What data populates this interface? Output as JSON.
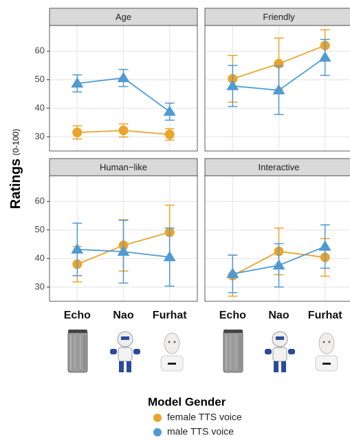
{
  "ylabel": "Ratings",
  "ylabel_unit": "(0-100)",
  "legend_title": "Model Gender",
  "chart_data": [
    {
      "type": "line",
      "title": "Age",
      "categories": [
        "Echo",
        "Nao",
        "Furhat"
      ],
      "ylim": [
        25,
        69
      ],
      "yticks": [
        30,
        40,
        50,
        60
      ],
      "grid": true,
      "series": [
        {
          "name": "female TTS voice",
          "color": "#E9A42B",
          "marker": "circle",
          "values": [
            31.5,
            32.2,
            30.8
          ],
          "errors": [
            2.3,
            2.3,
            2.0
          ]
        },
        {
          "name": "male TTS voice",
          "color": "#4F9BD1",
          "marker": "triangle",
          "values": [
            48.7,
            50.6,
            38.8
          ],
          "errors": [
            3.0,
            3.0,
            3.0
          ]
        }
      ]
    },
    {
      "type": "line",
      "title": "Friendly",
      "categories": [
        "Echo",
        "Nao",
        "Furhat"
      ],
      "ylim": [
        25,
        69
      ],
      "yticks": [
        30,
        40,
        50,
        60
      ],
      "grid": true,
      "series": [
        {
          "name": "female TTS voice",
          "color": "#E9A42B",
          "marker": "circle",
          "values": [
            50.3,
            55.6,
            62.0
          ],
          "errors": [
            8.2,
            9.0,
            5.5
          ]
        },
        {
          "name": "male TTS voice",
          "color": "#4F9BD1",
          "marker": "triangle",
          "values": [
            47.8,
            46.3,
            57.8
          ],
          "errors": [
            7.2,
            8.5,
            6.3
          ]
        }
      ]
    },
    {
      "type": "line",
      "title": "Human−like",
      "categories": [
        "Echo",
        "Nao",
        "Furhat"
      ],
      "ylim": [
        25,
        69
      ],
      "yticks": [
        30,
        40,
        50,
        60
      ],
      "grid": true,
      "series": [
        {
          "name": "female TTS voice",
          "color": "#E9A42B",
          "marker": "circle",
          "values": [
            38.0,
            44.6,
            49.2
          ],
          "errors": [
            6.2,
            9.0,
            9.5
          ]
        },
        {
          "name": "male TTS voice",
          "color": "#4F9BD1",
          "marker": "triangle",
          "values": [
            43.2,
            42.4,
            40.5
          ],
          "errors": [
            9.2,
            11.0,
            10.2
          ]
        }
      ]
    },
    {
      "type": "line",
      "title": "Interactive",
      "categories": [
        "Echo",
        "Nao",
        "Furhat"
      ],
      "ylim": [
        25,
        69
      ],
      "yticks": [
        30,
        40,
        50,
        60
      ],
      "grid": true,
      "series": [
        {
          "name": "female TTS voice",
          "color": "#E9A42B",
          "marker": "circle",
          "values": [
            34.0,
            42.5,
            40.4
          ],
          "errors": [
            7.2,
            8.2,
            6.6
          ]
        },
        {
          "name": "male TTS voice",
          "color": "#4F9BD1",
          "marker": "triangle",
          "values": [
            34.6,
            37.6,
            44.2
          ],
          "errors": [
            6.6,
            7.6,
            7.6
          ]
        }
      ]
    }
  ]
}
